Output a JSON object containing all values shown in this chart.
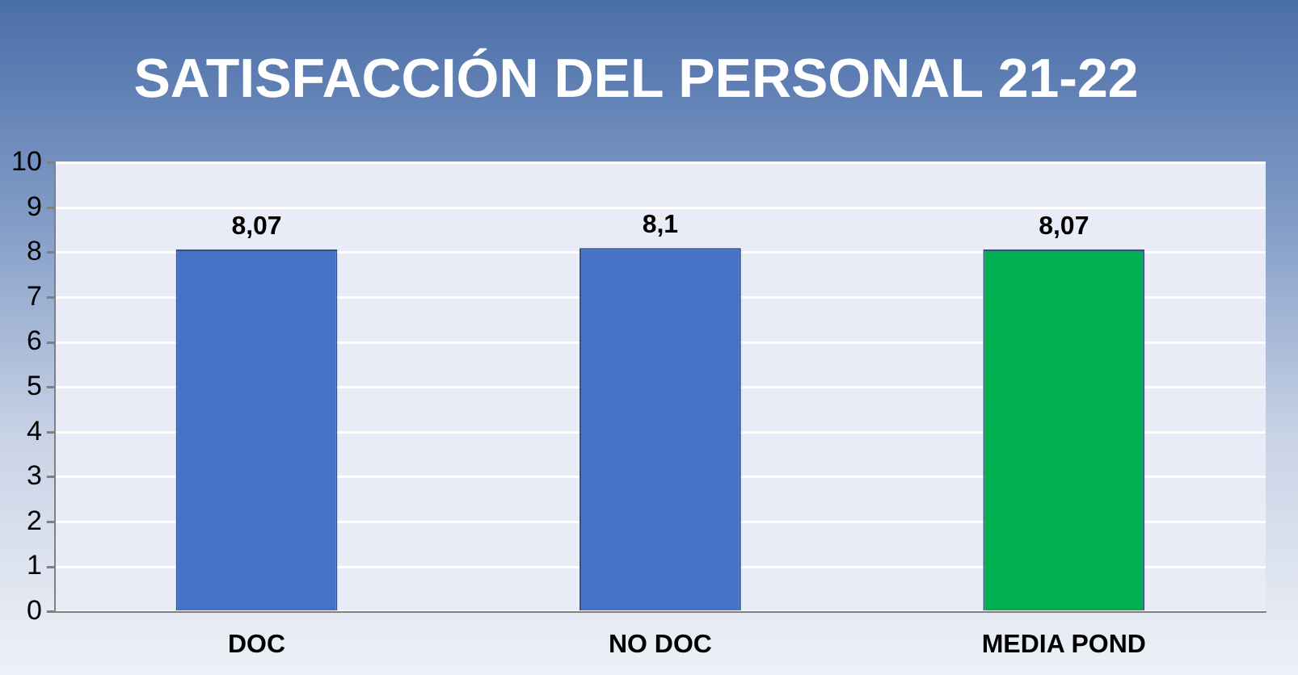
{
  "chart_data": {
    "type": "bar",
    "title": "SATISFACCIÓN DEL PERSONAL 21-22",
    "categories": [
      "DOC",
      "NO DOC",
      "MEDIA POND"
    ],
    "values": [
      8.07,
      8.1,
      8.07
    ],
    "colors": [
      "#4472c4",
      "#4472c4",
      "#00b050"
    ],
    "value_labels": [
      "8,07",
      "8,1",
      "8,07"
    ],
    "ylim": [
      0,
      10
    ],
    "yticks": [
      0,
      1,
      2,
      3,
      4,
      5,
      6,
      7,
      8,
      9,
      10
    ],
    "grid": "y",
    "legend": false
  }
}
